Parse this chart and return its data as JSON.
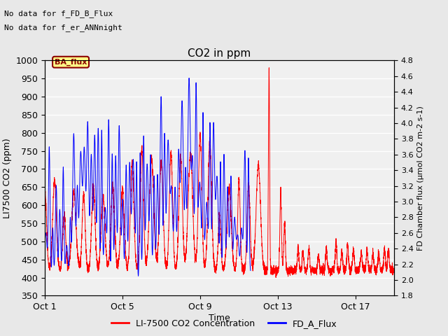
{
  "title": "CO2 in ppm",
  "text_line1": "No data for f_FD_B_Flux",
  "text_line2": "No data for f_er_ANNnight",
  "ba_flux_label": "BA_flux",
  "ylabel_left": "LI7500 CO2 (ppm)",
  "ylabel_right": "FD Chamber flux (μmol CO2 m-2 s-1)",
  "xlabel": "Time",
  "ylim_left": [
    350,
    1000
  ],
  "ylim_right": [
    1.8,
    4.8
  ],
  "xticks_labels": [
    "Oct 1",
    "Oct 5",
    "Oct 9",
    "Oct 13",
    "Oct 17"
  ],
  "xticks_positions": [
    0,
    4,
    8,
    12,
    16
  ],
  "xlim": [
    0,
    18
  ],
  "legend_entries": [
    "LI-7500 CO2 Concentration",
    "FD_A_Flux"
  ],
  "color_red": "#FF0000",
  "color_blue": "#0000FF",
  "bg_color": "#E8E8E8",
  "plot_bg_color": "#F0F0F0"
}
